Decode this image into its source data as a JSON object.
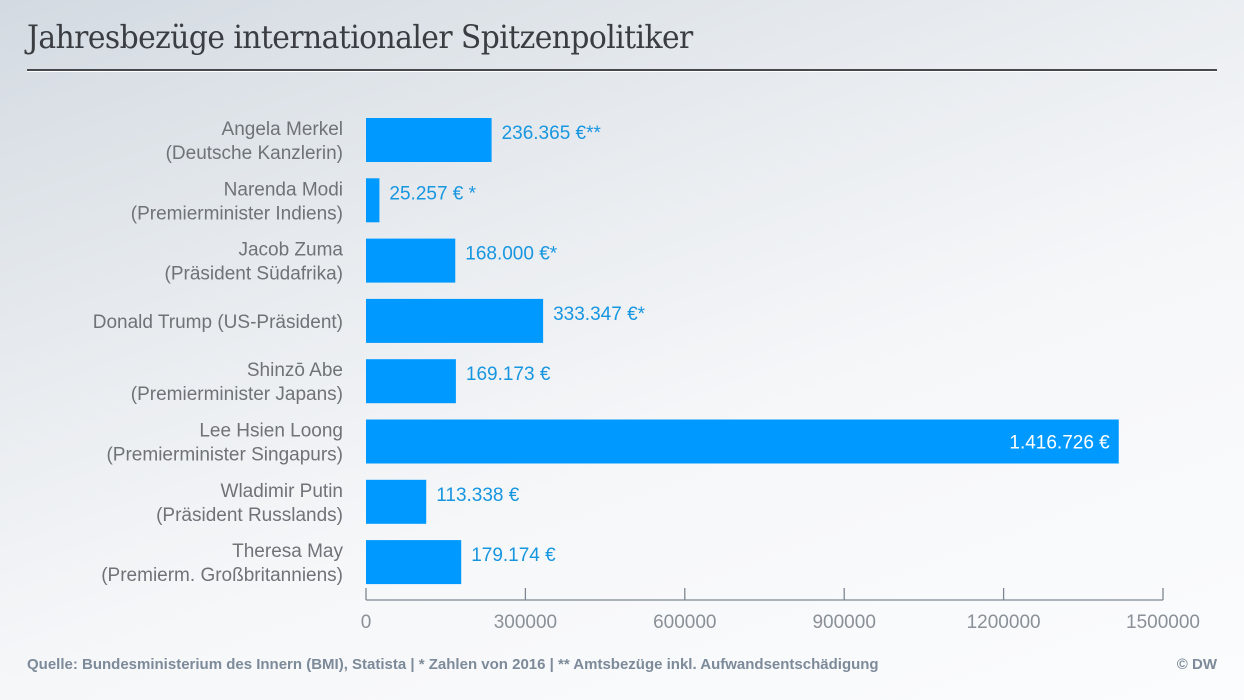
{
  "chart_data": {
    "type": "bar",
    "orientation": "horizontal",
    "title": "Jahresbezüge internationaler Spitzenpolitiker",
    "xlabel": "",
    "ylabel": "",
    "xlim": [
      0,
      1500000
    ],
    "xticks": [
      0,
      300000,
      600000,
      900000,
      1200000,
      1500000
    ],
    "xtick_labels": [
      "0",
      "300000",
      "600000",
      "900000",
      "1200000",
      "1500000"
    ],
    "grid": false,
    "bar_color": "#0099ff",
    "categories": [
      {
        "name": "Angela Merkel",
        "role": "(Deutsche Kanzlerin)",
        "value": 236365,
        "label": "236.365 €**"
      },
      {
        "name": "Narenda Modi",
        "role": "(Premierminister Indiens)",
        "value": 25257,
        "label": "25.257 € *"
      },
      {
        "name": "Jacob Zuma",
        "role": "(Präsident Südafrika)",
        "value": 168000,
        "label": "168.000 €*"
      },
      {
        "name": "Donald Trump (US-Präsident)",
        "role": "",
        "value": 333347,
        "label": "333.347 €*"
      },
      {
        "name": "Shinzō Abe",
        "role": "(Premierminister Japans)",
        "value": 169173,
        "label": "169.173 €"
      },
      {
        "name": "Lee Hsien Loong",
        "role": "(Premierminister Singapurs)",
        "value": 1416726,
        "label": "1.416.726 €",
        "label_inside": true
      },
      {
        "name": "Wladimir Putin",
        "role": "(Präsident Russlands)",
        "value": 113338,
        "label": "113.338 €"
      },
      {
        "name": "Theresa May",
        "role": "(Premierm. Großbritanniens)",
        "value": 179174,
        "label": "179.174 €"
      }
    ]
  },
  "footer": {
    "source": "Quelle: Bundesministerium des Innern (BMI), Statista | * Zahlen von 2016   |  ** Amtsbezüge inkl. Aufwandsentschädigung",
    "copyright": "© DW"
  }
}
